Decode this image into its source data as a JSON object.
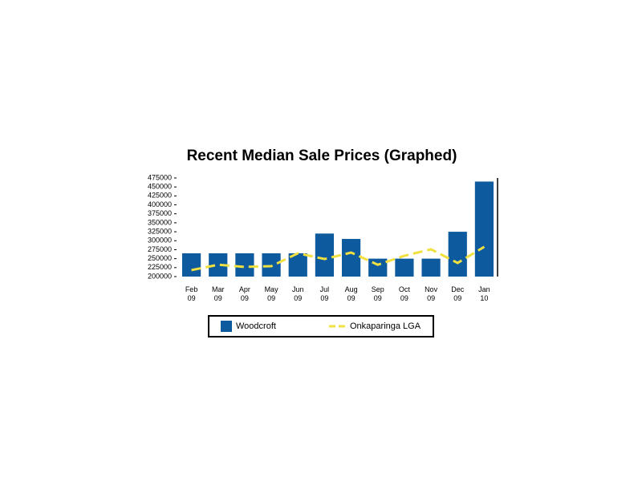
{
  "chart_data": {
    "type": "bar-line",
    "title": "Recent Median Sale Prices (Graphed)",
    "categories": [
      "Feb 09",
      "Mar 09",
      "Apr 09",
      "May 09",
      "Jun 09",
      "Jul 09",
      "Aug 09",
      "Sep 09",
      "Oct 09",
      "Nov 09",
      "Dec 09",
      "Jan 10"
    ],
    "series": [
      {
        "name": "Woodcroft",
        "type": "bar",
        "color": "#0d5a9e",
        "values": [
          265000,
          265000,
          265000,
          265000,
          265000,
          320000,
          305000,
          250000,
          250000,
          250000,
          325000,
          465000
        ]
      },
      {
        "name": "Onkaparinga LGA",
        "type": "line",
        "color": "#f0e040",
        "values": [
          218000,
          233000,
          227000,
          229000,
          265000,
          249000,
          267000,
          233000,
          258000,
          276000,
          238000,
          283000
        ]
      }
    ],
    "ylim": [
      200000,
      475000
    ],
    "yticks": [
      200000,
      225000,
      250000,
      275000,
      300000,
      325000,
      350000,
      375000,
      400000,
      425000,
      450000,
      475000
    ]
  }
}
